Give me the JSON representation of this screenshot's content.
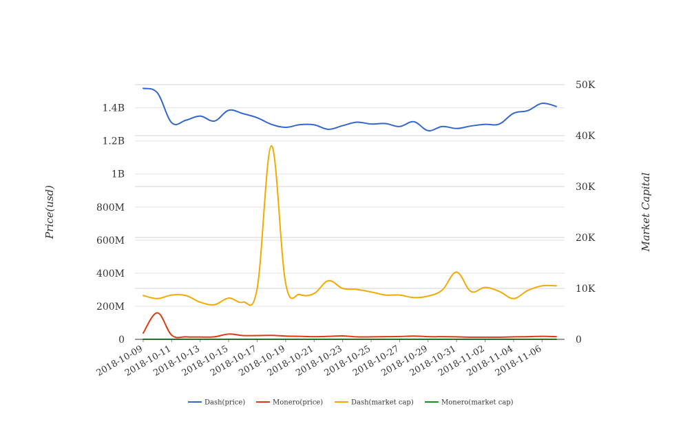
{
  "chart_data": {
    "type": "line",
    "title": "",
    "y_left_title": "Price(usd)",
    "y_right_title": "Market Capital",
    "y_left_ticks": [
      "0",
      "200M",
      "400M",
      "600M",
      "800M",
      "1B",
      "1.2B",
      "1.4B"
    ],
    "y_right_ticks": [
      "0",
      "10K",
      "20K",
      "30K",
      "40K",
      "50K"
    ],
    "x_ticks": [
      "2018-10-09",
      "2018-10-11",
      "2018-10-13",
      "2018-10-15",
      "2018-10-17",
      "2018-10-19",
      "2018-10-21",
      "2018-10-23",
      "2018-10-25",
      "2018-10-27",
      "2018-10-29",
      "2018-10-31",
      "2018-11-02",
      "2018-11-04",
      "2018-11-06"
    ],
    "ylim_left": [
      0,
      1540000000
    ],
    "ylim_right": [
      0,
      50000
    ],
    "grid": true,
    "legend_position": "bottom",
    "x": [
      "2018-10-09",
      "2018-10-10",
      "2018-10-11",
      "2018-10-12",
      "2018-10-13",
      "2018-10-14",
      "2018-10-15",
      "2018-10-16",
      "2018-10-17",
      "2018-10-18",
      "2018-10-19",
      "2018-10-20",
      "2018-10-21",
      "2018-10-22",
      "2018-10-23",
      "2018-10-24",
      "2018-10-25",
      "2018-10-26",
      "2018-10-27",
      "2018-10-28",
      "2018-10-29",
      "2018-10-30",
      "2018-10-31",
      "2018-11-01",
      "2018-11-02",
      "2018-11-03",
      "2018-11-04",
      "2018-11-05",
      "2018-11-06",
      "2018-11-07"
    ],
    "series": [
      {
        "name": "Dash(price)",
        "axis": "left",
        "color": "#3366cc",
        "values": [
          1518000000,
          1490000000,
          1310000000,
          1325000000,
          1350000000,
          1320000000,
          1385000000,
          1365000000,
          1340000000,
          1300000000,
          1282000000,
          1298000000,
          1297000000,
          1270000000,
          1292000000,
          1313000000,
          1302000000,
          1305000000,
          1287000000,
          1316000000,
          1262000000,
          1287000000,
          1275000000,
          1290000000,
          1300000000,
          1302000000,
          1367000000,
          1383000000,
          1427000000,
          1408000000
        ]
      },
      {
        "name": "Monero(price)",
        "axis": "left",
        "color": "#dc3912",
        "values": [
          38000000,
          160000000,
          25000000,
          15000000,
          14000000,
          15000000,
          32000000,
          23000000,
          23000000,
          24000000,
          20000000,
          18000000,
          16000000,
          18000000,
          21000000,
          15000000,
          15000000,
          16000000,
          17000000,
          20000000,
          16000000,
          16000000,
          15000000,
          13000000,
          13000000,
          13000000,
          15000000,
          16000000,
          18000000,
          16000000
        ]
      },
      {
        "name": "Dash(market cap)",
        "axis": "right",
        "color": "#f2a900",
        "values": [
          8600,
          8000,
          8700,
          8600,
          7300,
          6800,
          8100,
          7300,
          10000,
          38000,
          11000,
          8800,
          9000,
          11500,
          10000,
          9800,
          9300,
          8700,
          8700,
          8200,
          8500,
          9700,
          13200,
          9400,
          10200,
          9400,
          8000,
          9600,
          10500,
          10500
        ]
      },
      {
        "name": "Monero(market cap)",
        "axis": "right",
        "color": "#109618",
        "values": [
          20,
          20,
          20,
          20,
          20,
          20,
          20,
          20,
          20,
          20,
          20,
          20,
          20,
          20,
          20,
          20,
          20,
          20,
          20,
          20,
          20,
          20,
          20,
          20,
          20,
          20,
          20,
          20,
          20,
          20
        ]
      }
    ]
  }
}
